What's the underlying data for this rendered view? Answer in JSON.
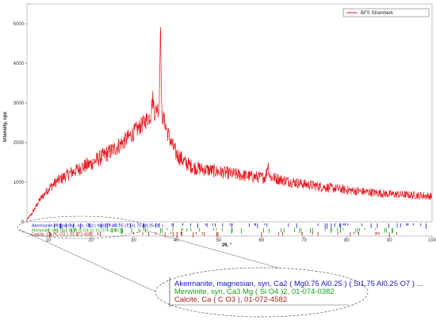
{
  "chart_data": {
    "type": "line",
    "xlabel": "2θ, °",
    "ylabel": "Intensity, cps",
    "xlim": [
      5,
      100
    ],
    "ylim": [
      0,
      5500
    ],
    "xticks": [
      10,
      20,
      30,
      40,
      50,
      60,
      70,
      80,
      90,
      100
    ],
    "yticks": [
      0,
      1000,
      2000,
      3000,
      4000,
      5000
    ],
    "grid": false,
    "legend_position": "top-right",
    "series": [
      {
        "name": "BFS Stramberk",
        "color": "#e8141b",
        "x": [
          5,
          6,
          8,
          10,
          12,
          15,
          18,
          20,
          22,
          25,
          28,
          30,
          32,
          33,
          34,
          34.5,
          35,
          35.5,
          36,
          36.3,
          36.6,
          37,
          37.5,
          38,
          39,
          40,
          42,
          44,
          46,
          48,
          50,
          52,
          54,
          56,
          58,
          60,
          61,
          61.5,
          62,
          64,
          66,
          68,
          70,
          72,
          74,
          76,
          78,
          80,
          82,
          84,
          86,
          88,
          90,
          92,
          94,
          96,
          98,
          100
        ],
        "y": [
          50,
          180,
          550,
          830,
          1020,
          1220,
          1380,
          1470,
          1600,
          1800,
          2050,
          2250,
          2450,
          2580,
          2680,
          3150,
          2720,
          2900,
          2780,
          5150,
          2700,
          2600,
          2450,
          2250,
          1950,
          1720,
          1500,
          1380,
          1330,
          1300,
          1260,
          1230,
          1200,
          1170,
          1140,
          1120,
          1130,
          1480,
          1130,
          1080,
          1030,
          990,
          950,
          920,
          890,
          860,
          830,
          800,
          780,
          760,
          740,
          720,
          700,
          690,
          680,
          670,
          660,
          640
        ]
      }
    ],
    "reference_patterns": [
      {
        "name": "Akermanite, magnesian, syn, Ca2 ( Mg0.75 Al0.25 ) ( Si1.75 Al0.25 O7 ) ...",
        "zoom_name": "Akermanite, magnesian, syn, Ca2 ( Mg0.75 Al0.25 ) ( Si1.75 Al0.25 O7 ) ...",
        "color": "#1515d0"
      },
      {
        "name": "Merwinite, syn, Ca3 Mg ( Si O4 )2, 01-074-0382",
        "zoom_name": "Merwinite, syn, Ca3 Mg ( Si O4 )2, 01-074-0382",
        "color": "#16a216"
      },
      {
        "name": "Calcite, Ca ( C O3 ), 01-072-4582",
        "zoom_name": "Calcite, Ca ( C O3 ), 01-072-4582",
        "color": "#b0201a"
      }
    ]
  }
}
